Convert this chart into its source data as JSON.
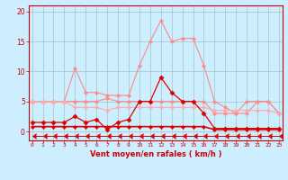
{
  "bg_color": "#cceeff",
  "grid_color": "#aacccc",
  "x_ticks": [
    0,
    1,
    2,
    3,
    4,
    5,
    6,
    7,
    8,
    9,
    10,
    11,
    12,
    13,
    14,
    15,
    16,
    17,
    18,
    19,
    20,
    21,
    22,
    23
  ],
  "xlabel": "Vent moyen/en rafales ( km/h )",
  "ylabel_ticks": [
    0,
    5,
    10,
    15,
    20
  ],
  "ylim": [
    -1.5,
    21
  ],
  "xlim": [
    -0.3,
    23.3
  ],
  "series": [
    {
      "name": "light_pink_high",
      "color": "#ff8888",
      "lw": 0.8,
      "marker": "P",
      "markersize": 2.5,
      "x": [
        0,
        1,
        2,
        3,
        4,
        5,
        6,
        7,
        8,
        9,
        10,
        11,
        12,
        13,
        14,
        15,
        16,
        17,
        18,
        19,
        20,
        21,
        22,
        23
      ],
      "y": [
        5,
        5,
        5,
        5,
        10.5,
        6.5,
        6.5,
        6,
        6,
        6,
        11,
        15,
        18.5,
        15,
        15.5,
        15.5,
        11,
        5,
        4,
        3,
        5,
        5,
        5,
        3
      ]
    },
    {
      "name": "light_pink_mid",
      "color": "#ff8888",
      "lw": 0.8,
      "marker": "P",
      "markersize": 2.5,
      "x": [
        0,
        1,
        2,
        3,
        4,
        5,
        6,
        7,
        8,
        9,
        10,
        11,
        12,
        13,
        14,
        15,
        16,
        17,
        18,
        19,
        20,
        21,
        22,
        23
      ],
      "y": [
        5,
        5,
        5,
        5,
        5,
        5,
        5,
        5.5,
        5,
        5,
        5,
        5,
        5,
        5,
        5,
        5,
        5,
        3,
        3,
        3,
        3,
        5,
        5,
        3
      ]
    },
    {
      "name": "light_pink_low",
      "color": "#ffaaaa",
      "lw": 0.8,
      "marker": "P",
      "markersize": 2.5,
      "x": [
        0,
        1,
        2,
        3,
        4,
        5,
        6,
        7,
        8,
        9,
        10,
        11,
        12,
        13,
        14,
        15,
        16,
        17,
        18,
        19,
        20,
        21,
        22,
        23
      ],
      "y": [
        5,
        5,
        5,
        5,
        4,
        4,
        4,
        3.5,
        4,
        4,
        4,
        4,
        4,
        4,
        4,
        4,
        4,
        3.5,
        3.5,
        3.5,
        3.5,
        3.5,
        3.5,
        3
      ]
    },
    {
      "name": "dark_red_main",
      "color": "#dd0000",
      "lw": 0.9,
      "marker": "D",
      "markersize": 2.5,
      "x": [
        0,
        1,
        2,
        3,
        4,
        5,
        6,
        7,
        8,
        9,
        10,
        11,
        12,
        13,
        14,
        15,
        16,
        17,
        18,
        19,
        20,
        21,
        22,
        23
      ],
      "y": [
        1.5,
        1.5,
        1.5,
        1.5,
        2.5,
        1.5,
        2,
        0.3,
        1.5,
        2,
        5,
        5,
        9,
        6.5,
        5,
        5,
        3,
        0.5,
        0.5,
        0.5,
        0.5,
        0.5,
        0.5,
        0.5
      ]
    },
    {
      "name": "dark_red_flat",
      "color": "#dd0000",
      "lw": 1.2,
      "marker": "D",
      "markersize": 2,
      "x": [
        0,
        1,
        2,
        3,
        4,
        5,
        6,
        7,
        8,
        9,
        10,
        11,
        12,
        13,
        14,
        15,
        16,
        17,
        18,
        19,
        20,
        21,
        22,
        23
      ],
      "y": [
        0.8,
        0.8,
        0.8,
        0.8,
        0.8,
        0.8,
        0.8,
        0.8,
        0.8,
        0.8,
        0.8,
        0.8,
        0.8,
        0.8,
        0.8,
        0.8,
        0.8,
        0.3,
        0.3,
        0.3,
        0.3,
        0.3,
        0.3,
        0.3
      ]
    },
    {
      "name": "arrow_line",
      "color": "#dd0000",
      "lw": 0.7,
      "marker": 4,
      "markersize": 4,
      "x": [
        0,
        1,
        2,
        3,
        4,
        5,
        6,
        7,
        8,
        9,
        10,
        11,
        12,
        13,
        14,
        15,
        16,
        17,
        18,
        19,
        20,
        21,
        22,
        23
      ],
      "y": [
        -0.8,
        -0.8,
        -0.8,
        -0.8,
        -0.8,
        -0.8,
        -0.8,
        -0.8,
        -0.8,
        -0.8,
        -0.8,
        -0.8,
        -0.8,
        -0.8,
        -0.8,
        -0.8,
        -0.8,
        -0.8,
        -0.8,
        -0.8,
        -0.8,
        -0.8,
        -0.8,
        -0.8
      ]
    }
  ]
}
